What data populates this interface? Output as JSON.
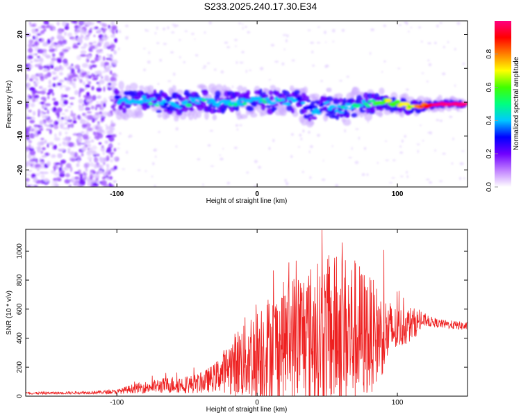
{
  "title": "S233.2025.240.17.30.E34",
  "chart_data": [
    {
      "type": "heatmap",
      "xlabel": "Height of straight line (km)",
      "ylabel": "Frequency (Hz)",
      "xlim": [
        -165,
        150
      ],
      "ylim": [
        -25,
        24
      ],
      "xticks": [
        -100,
        0,
        100
      ],
      "yticks": [
        -20,
        -10,
        0,
        10,
        20
      ],
      "grid": false,
      "colorbar": {
        "label": "Normalized spectral amplitude",
        "range": [
          0,
          1
        ],
        "ticks": [
          0.0,
          0.2,
          0.4,
          0.6,
          0.8
        ],
        "colors": [
          "#ffffff",
          "#c080ff",
          "#7000ff",
          "#0000ff",
          "#00c8ff",
          "#00ff80",
          "#40ff00",
          "#ffff00",
          "#ff8000",
          "#ff0000",
          "#ff0080"
        ]
      },
      "noise_region": {
        "x": [
          -165,
          -100
        ],
        "y": [
          -25,
          24
        ],
        "amplitude": 0.15
      },
      "ridge": [
        {
          "x": -100,
          "y": 0.5,
          "amp": 0.25
        },
        {
          "x": -90,
          "y": 0.0,
          "amp": 0.3
        },
        {
          "x": -80,
          "y": 0.5,
          "amp": 0.3
        },
        {
          "x": -70,
          "y": 0.0,
          "amp": 0.3
        },
        {
          "x": -60,
          "y": -1.0,
          "amp": 0.25
        },
        {
          "x": -50,
          "y": 0.0,
          "amp": 0.3
        },
        {
          "x": -40,
          "y": 1.0,
          "amp": 0.3
        },
        {
          "x": -30,
          "y": 0.0,
          "amp": 0.3
        },
        {
          "x": -20,
          "y": 0.5,
          "amp": 0.3
        },
        {
          "x": -10,
          "y": 0.0,
          "amp": 0.3
        },
        {
          "x": 0,
          "y": 0.5,
          "amp": 0.3
        },
        {
          "x": 10,
          "y": 0.0,
          "amp": 0.3
        },
        {
          "x": 20,
          "y": 0.5,
          "amp": 0.3
        },
        {
          "x": 30,
          "y": 0.0,
          "amp": 0.25
        },
        {
          "x": 40,
          "y": -3.0,
          "amp": 0.25
        },
        {
          "x": 50,
          "y": -1.0,
          "amp": 0.25
        },
        {
          "x": 60,
          "y": -2.0,
          "amp": 0.3
        },
        {
          "x": 70,
          "y": -1.0,
          "amp": 0.3
        },
        {
          "x": 80,
          "y": -0.5,
          "amp": 0.35
        },
        {
          "x": 90,
          "y": 0.0,
          "amp": 0.5
        },
        {
          "x": 100,
          "y": -0.5,
          "amp": 0.55
        },
        {
          "x": 110,
          "y": -1.5,
          "amp": 0.6
        },
        {
          "x": 120,
          "y": -1.0,
          "amp": 0.75
        },
        {
          "x": 130,
          "y": -0.5,
          "amp": 0.9
        },
        {
          "x": 140,
          "y": -0.5,
          "amp": 0.95
        },
        {
          "x": 148,
          "y": -0.5,
          "amp": 0.9
        }
      ]
    },
    {
      "type": "line",
      "xlabel": "Height of straight line (km)",
      "ylabel": "SNR (10 * v/v)",
      "xlim": [
        -165,
        150
      ],
      "ylim": [
        0,
        1150
      ],
      "xticks": [
        -100,
        0,
        100
      ],
      "yticks": [
        0,
        200,
        400,
        600,
        800,
        1000
      ],
      "grid": false,
      "series": [
        {
          "color": "#ee2020",
          "x": [
            -165,
            -140,
            -120,
            -100,
            -90,
            -80,
            -70,
            -60,
            -50,
            -40,
            -30,
            -20,
            -10,
            0,
            10,
            20,
            30,
            40,
            50,
            60,
            70,
            80,
            90,
            100,
            110,
            120,
            130,
            140,
            150
          ],
          "base": [
            20,
            22,
            25,
            30,
            50,
            60,
            70,
            80,
            80,
            90,
            130,
            200,
            250,
            300,
            330,
            380,
            420,
            420,
            430,
            440,
            440,
            420,
            430,
            460,
            500,
            520,
            500,
            490,
            480
          ],
          "spread": [
            8,
            8,
            10,
            15,
            30,
            40,
            50,
            60,
            60,
            70,
            100,
            180,
            280,
            380,
            380,
            420,
            480,
            500,
            520,
            560,
            520,
            420,
            280,
            150,
            120,
            40,
            30,
            30,
            30
          ]
        }
      ]
    }
  ]
}
